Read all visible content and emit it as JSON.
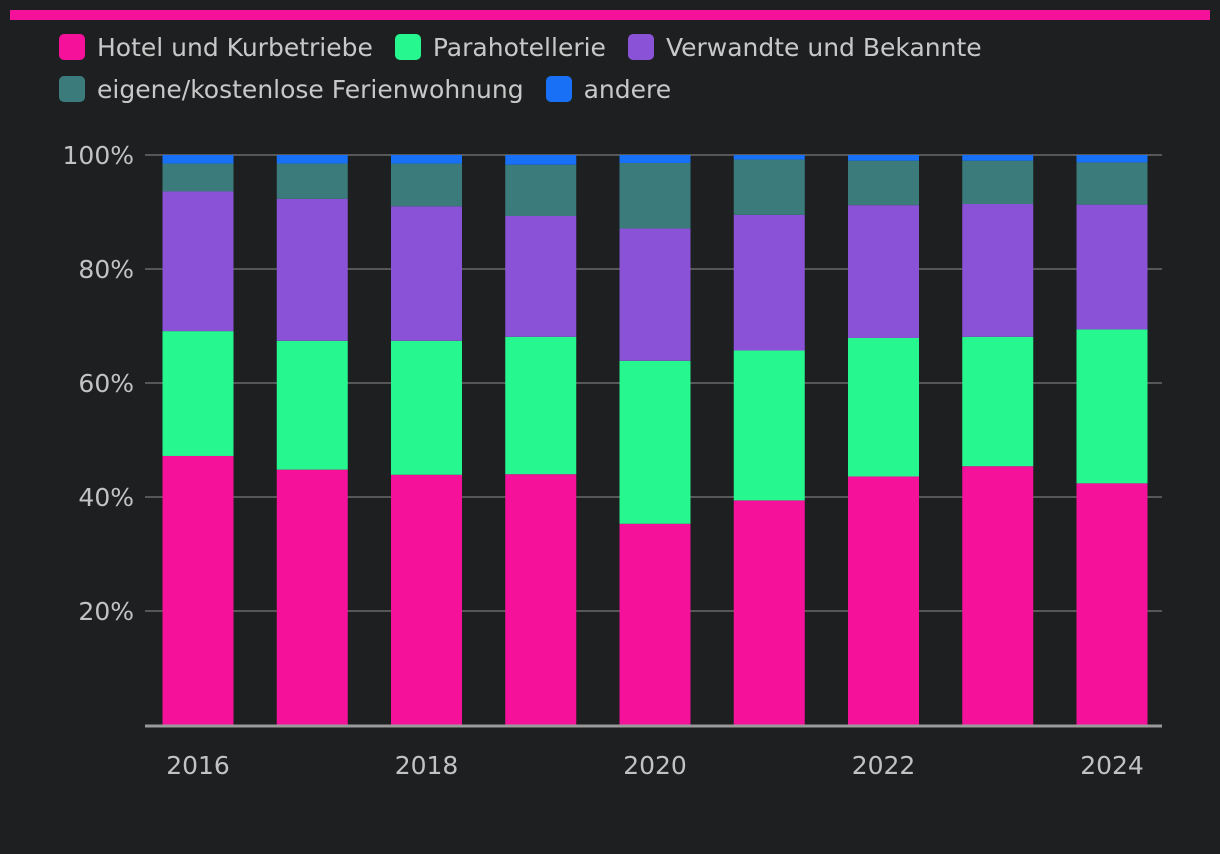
{
  "colors": {
    "accent_bar": "#f5119a",
    "grid": "#6a6a6a",
    "axis": "#9a9a9a"
  },
  "legend": [
    {
      "label": "Hotel und Kurbetriebe",
      "color": "#f5119a"
    },
    {
      "label": "Parahotellerie",
      "color": "#27f78f"
    },
    {
      "label": "Verwandte und Bekannte",
      "color": "#8a52d6"
    },
    {
      "label": "eigene/kostenlose Ferienwohnung",
      "color": "#3b7b7b"
    },
    {
      "label": "andere",
      "color": "#1770f5"
    }
  ],
  "chart_data": {
    "type": "bar",
    "stacked": true,
    "title": "",
    "xlabel": "",
    "ylabel": "",
    "ylim": [
      0,
      100
    ],
    "y_ticks": [
      "20%",
      "40%",
      "60%",
      "80%",
      "100%"
    ],
    "x_tick_labels": [
      "2016",
      "2018",
      "2020",
      "2022",
      "2024"
    ],
    "categories": [
      "2016",
      "2017",
      "2018",
      "2019",
      "2020",
      "2021",
      "2022",
      "2023",
      "2024"
    ],
    "series": [
      {
        "name": "Hotel und Kurbetriebe",
        "color": "#f5119a",
        "values": [
          47.2,
          44.8,
          43.9,
          44.0,
          35.3,
          39.4,
          43.6,
          45.4,
          42.4
        ]
      },
      {
        "name": "Parahotellerie",
        "color": "#27f78f",
        "values": [
          21.9,
          22.6,
          23.5,
          24.1,
          28.6,
          26.3,
          24.3,
          22.7,
          27.0
        ]
      },
      {
        "name": "Verwandte und Bekannte",
        "color": "#8a52d6",
        "values": [
          24.5,
          24.9,
          23.6,
          21.2,
          23.2,
          23.8,
          23.3,
          23.3,
          21.9
        ]
      },
      {
        "name": "eigene/kostenlose Ferienwohnung",
        "color": "#3b7b7b",
        "values": [
          4.9,
          6.2,
          7.5,
          9.0,
          11.5,
          9.7,
          7.8,
          7.6,
          7.4
        ]
      },
      {
        "name": "andere",
        "color": "#1770f5",
        "values": [
          1.5,
          1.5,
          1.5,
          1.7,
          1.4,
          0.8,
          1.0,
          1.0,
          1.3
        ]
      }
    ]
  }
}
